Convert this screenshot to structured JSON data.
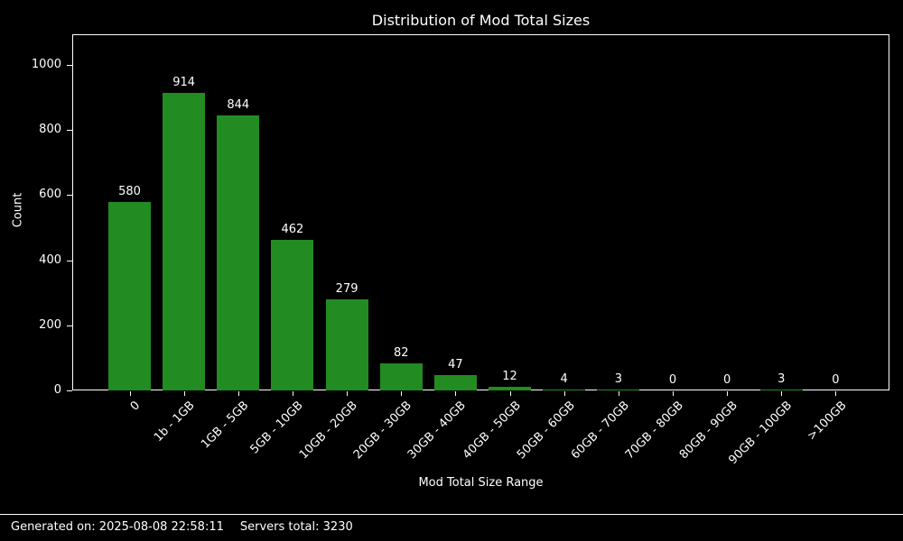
{
  "chart_data": {
    "type": "bar",
    "title": "Distribution of Mod Total Sizes",
    "xlabel": "Mod Total Size Range",
    "ylabel": "Count",
    "categories": [
      "0",
      "1b - 1GB",
      "1GB - 5GB",
      "5GB - 10GB",
      "10GB - 20GB",
      "20GB - 30GB",
      "30GB - 40GB",
      "40GB - 50GB",
      "50GB - 60GB",
      "60GB - 70GB",
      "70GB - 80GB",
      "80GB - 90GB",
      "90GB - 100GB",
      ">100GB"
    ],
    "values": [
      580,
      914,
      844,
      462,
      279,
      82,
      47,
      12,
      4,
      3,
      0,
      0,
      3,
      0
    ],
    "yticks": [
      0,
      200,
      400,
      600,
      800,
      1000
    ],
    "ylim": [
      0,
      1094
    ],
    "grid": false,
    "legend_position": "none",
    "bar_color": "#228B22",
    "background_color": "#000000",
    "text_color": "#ffffff",
    "spine_color": "#ffffff"
  },
  "footer": {
    "generated": "Generated on: 2025-08-08 22:58:11",
    "servers": "Servers total: 3230"
  }
}
